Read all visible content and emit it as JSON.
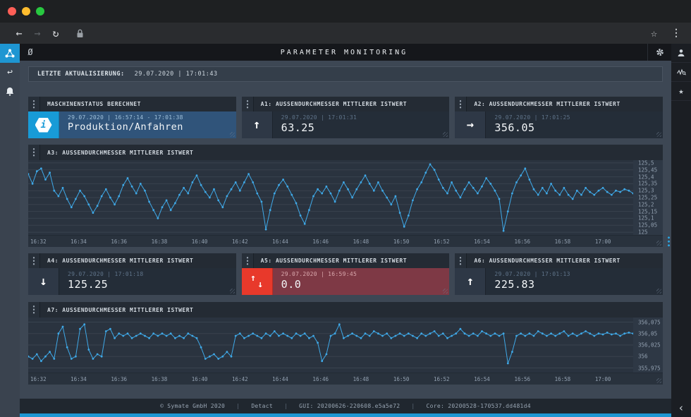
{
  "colors": {
    "accent": "#1e96d2",
    "alert": "#e8392b",
    "line": "#3fa9e8"
  },
  "header": {
    "title": "PARAMETER MONITORING",
    "clear_glyph": "Ø"
  },
  "browser": {
    "back_glyph": "←",
    "forward_glyph": "→",
    "reload_glyph": "↻",
    "star_glyph": "☆",
    "menu_glyph": "⋮"
  },
  "sidebar_right": {
    "star_glyph": "★",
    "collapse_glyph": "‹"
  },
  "sidebar_left": {
    "reply_glyph": "↩"
  },
  "status_bar": {
    "label": "LETZTE AKTUALISIERUNG:",
    "value": "29.07.2020 | 17:01:43"
  },
  "cards": {
    "status": {
      "title": "MASCHINENSTATUS BERECHNET",
      "timestamp": "29.07.2020 | 16:57:14 - 17:01:38",
      "value": "Produktion/Anfahren",
      "glyph": "i"
    },
    "a1": {
      "title": "A1: AUSSENDURCHMESSER MITTLERER ISTWERT",
      "timestamp": "29.07.2020 | 17:01:31",
      "value": "63.25",
      "glyph": "↑"
    },
    "a2": {
      "title": "A2: AUSSENDURCHMESSER MITTLERER ISTWERT",
      "timestamp": "29.07.2020 | 17:01:25",
      "value": "356.05",
      "glyph": "→"
    },
    "a4": {
      "title": "A4: AUSSENDURCHMESSER MITTLERER ISTWERT",
      "timestamp": "29.07.2020 | 17:01:18",
      "value": "125.25",
      "glyph": "↓"
    },
    "a5": {
      "title": "A5: AUSSENDURCHMESSER MITTLERER ISTWERT",
      "timestamp": "29.07.2020 | 16:59:45",
      "value": "0.0",
      "glyph_up": "↑",
      "glyph_down": "↓"
    },
    "a6": {
      "title": "A6: AUSSENDURCHMESSER MITTLERER ISTWERT",
      "timestamp": "29.07.2020 | 17:01:13",
      "value": "225.83",
      "glyph": "↑"
    }
  },
  "footer": {
    "separator": "|",
    "items": [
      "© Symate GmbH 2020",
      "Detact",
      "GUI: 20200626-220608.e5a5e72",
      "Core: 20200528-170537.dd481d4"
    ]
  },
  "chart_data": [
    {
      "id": "a3",
      "type": "line",
      "title": "A3: AUSSENDURCHMESSER MITTLERER ISTWERT",
      "legend": "none",
      "grid": "horizontal",
      "y_axis_side": "right",
      "color": "#3fa9e8",
      "x_ticks": [
        "16:32",
        "16:34",
        "16:36",
        "16:38",
        "16:40",
        "16:42",
        "16:44",
        "16:46",
        "16:48",
        "16:50",
        "16:52",
        "16:54",
        "16:56",
        "16:58",
        "17:00"
      ],
      "x_range_minutes": 30,
      "ylim": [
        124.98,
        125.52
      ],
      "y_tick_values": [
        125.5,
        125.45,
        125.4,
        125.35,
        125.3,
        125.25,
        125.2,
        125.15,
        125.1,
        125.05,
        125.0
      ],
      "y_tick_labels": [
        "125,5",
        "125,45",
        "125,4",
        "125,35",
        "125,3",
        "125,25",
        "125,2",
        "125,15",
        "125,1",
        "125,05",
        "125"
      ],
      "values": [
        125.42,
        125.35,
        125.44,
        125.46,
        125.38,
        125.43,
        125.3,
        125.26,
        125.32,
        125.24,
        125.18,
        125.24,
        125.3,
        125.26,
        125.2,
        125.14,
        125.19,
        125.26,
        125.31,
        125.25,
        125.2,
        125.26,
        125.34,
        125.39,
        125.33,
        125.28,
        125.35,
        125.3,
        125.22,
        125.16,
        125.1,
        125.18,
        125.23,
        125.16,
        125.21,
        125.27,
        125.32,
        125.28,
        125.36,
        125.41,
        125.34,
        125.29,
        125.25,
        125.31,
        125.23,
        125.18,
        125.26,
        125.31,
        125.36,
        125.3,
        125.36,
        125.42,
        125.36,
        125.28,
        125.22,
        125.02,
        125.16,
        125.28,
        125.34,
        125.38,
        125.33,
        125.27,
        125.21,
        125.12,
        125.06,
        125.16,
        125.26,
        125.31,
        125.28,
        125.33,
        125.28,
        125.22,
        125.3,
        125.36,
        125.31,
        125.25,
        125.31,
        125.36,
        125.41,
        125.35,
        125.3,
        125.36,
        125.3,
        125.25,
        125.2,
        125.26,
        125.14,
        125.04,
        125.12,
        125.23,
        125.31,
        125.36,
        125.43,
        125.49,
        125.45,
        125.38,
        125.32,
        125.28,
        125.36,
        125.3,
        125.25,
        125.31,
        125.36,
        125.32,
        125.28,
        125.33,
        125.39,
        125.35,
        125.3,
        125.24,
        125.01,
        125.15,
        125.28,
        125.36,
        125.41,
        125.46,
        125.38,
        125.31,
        125.27,
        125.32,
        125.28,
        125.35,
        125.3,
        125.27,
        125.32,
        125.27,
        125.24,
        125.3,
        125.27,
        125.32,
        125.29,
        125.27,
        125.3,
        125.32,
        125.29,
        125.27,
        125.3,
        125.29,
        125.31,
        125.3,
        125.28
      ]
    },
    {
      "id": "a7",
      "type": "line",
      "title": "A7: AUSSENDURCHMESSER MITTLERER ISTWERT",
      "legend": "none",
      "grid": "horizontal",
      "y_axis_side": "right",
      "color": "#3fa9e8",
      "x_ticks": [
        "16:32",
        "16:34",
        "16:36",
        "16:38",
        "16:40",
        "16:42",
        "16:44",
        "16:46",
        "16:48",
        "16:50",
        "16:52",
        "16:54",
        "16:56",
        "16:58",
        "17:00"
      ],
      "x_range_minutes": 30,
      "ylim": [
        355.965,
        356.085
      ],
      "y_tick_values": [
        356.075,
        356.05,
        356.025,
        356.0,
        355.975
      ],
      "y_tick_labels": [
        "356,075",
        "356,05",
        "356,025",
        "356",
        "355,975"
      ],
      "values": [
        356.0,
        355.995,
        356.005,
        355.99,
        356.0,
        356.01,
        355.995,
        356.05,
        356.065,
        356.02,
        355.995,
        356.0,
        356.06,
        356.07,
        356.015,
        355.995,
        356.005,
        356.0,
        356.055,
        356.06,
        356.04,
        356.05,
        356.045,
        356.05,
        356.04,
        356.045,
        356.05,
        356.045,
        356.04,
        356.05,
        356.045,
        356.05,
        356.045,
        356.05,
        356.04,
        356.045,
        356.04,
        356.05,
        356.045,
        356.04,
        356.02,
        355.995,
        356.0,
        356.005,
        355.995,
        356.0,
        356.01,
        356.0,
        356.045,
        356.05,
        356.04,
        356.045,
        356.05,
        356.045,
        356.04,
        356.05,
        356.045,
        356.055,
        356.045,
        356.05,
        356.045,
        356.04,
        356.05,
        356.045,
        356.05,
        356.04,
        356.045,
        356.03,
        355.99,
        356.005,
        356.045,
        356.05,
        356.07,
        356.04,
        356.045,
        356.05,
        356.045,
        356.04,
        356.05,
        356.045,
        356.055,
        356.05,
        356.045,
        356.05,
        356.04,
        356.045,
        356.05,
        356.045,
        356.05,
        356.045,
        356.04,
        356.05,
        356.045,
        356.05,
        356.055,
        356.045,
        356.05,
        356.04,
        356.045,
        356.05,
        356.06,
        356.05,
        356.045,
        356.05,
        356.045,
        356.055,
        356.05,
        356.045,
        356.05,
        356.045,
        356.05,
        355.985,
        356.01,
        356.045,
        356.05,
        356.045,
        356.05,
        356.045,
        356.055,
        356.05,
        356.045,
        356.05,
        356.045,
        356.05,
        356.055,
        356.045,
        356.05,
        356.045,
        356.05,
        356.055,
        356.05,
        356.045,
        356.05,
        356.048,
        356.052,
        356.048,
        356.05,
        356.045,
        356.05,
        356.052,
        356.05
      ]
    }
  ]
}
